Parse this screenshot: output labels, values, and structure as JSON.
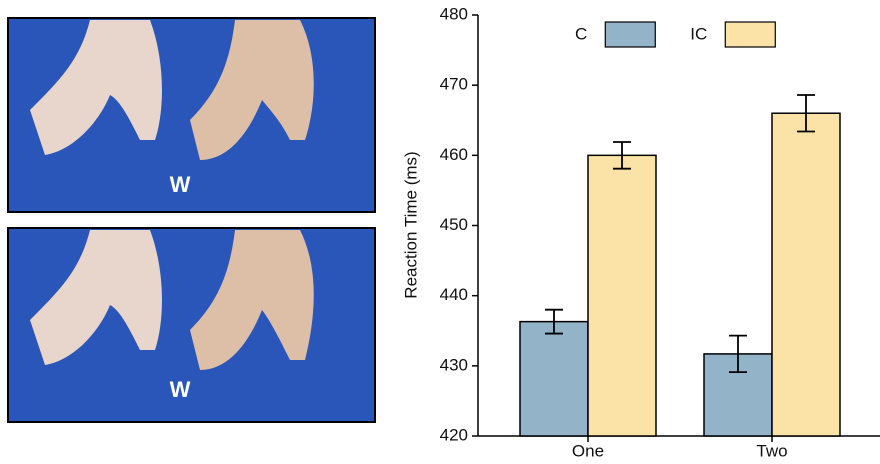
{
  "images": [
    {
      "label": "W"
    },
    {
      "label": "W"
    }
  ],
  "chart_data": {
    "type": "bar",
    "ylabel": "Reaction Time (ms)",
    "categories": [
      "One",
      "Two"
    ],
    "series": [
      {
        "name": "C",
        "color": "#93b3c8",
        "values": [
          436.3,
          431.7
        ],
        "errors": [
          1.7,
          2.6
        ]
      },
      {
        "name": "IC",
        "color": "#fbe3a8",
        "values": [
          460,
          466
        ],
        "errors": [
          1.9,
          2.6
        ]
      }
    ],
    "ylim": [
      420,
      480
    ],
    "yticks": [
      420,
      430,
      440,
      450,
      460,
      470,
      480
    ],
    "legend": "top",
    "grid": false
  }
}
